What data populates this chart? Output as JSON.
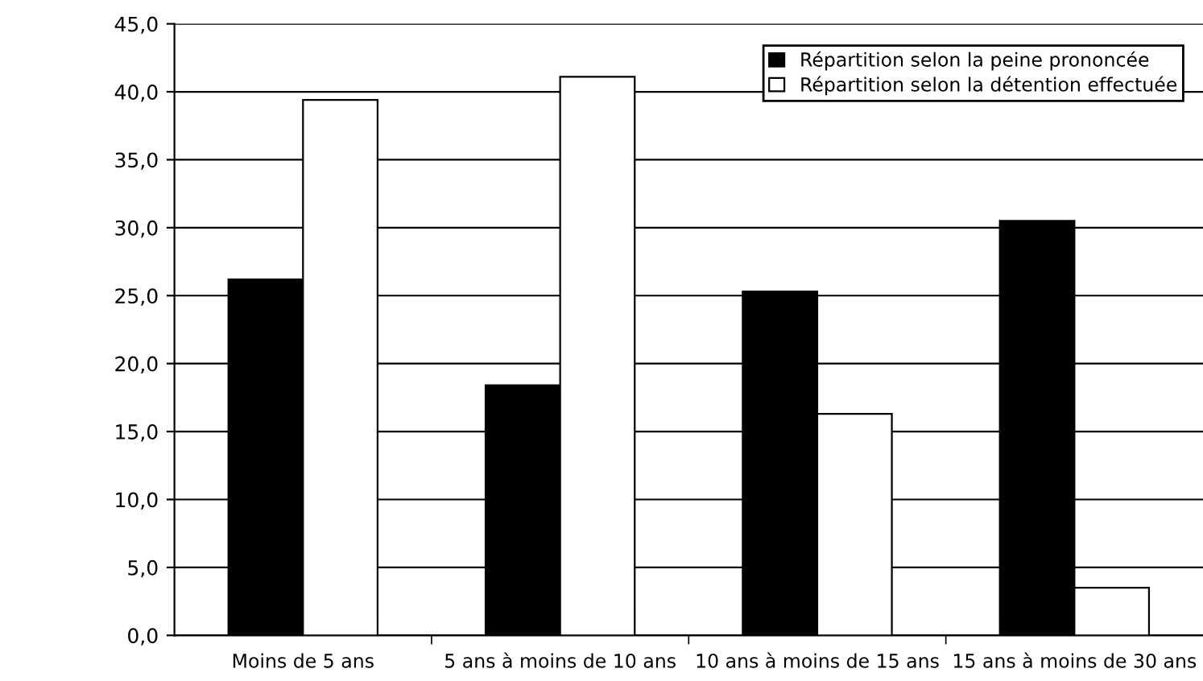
{
  "chart_data": {
    "type": "bar",
    "categories": [
      "Moins de 5 ans",
      "5 ans à moins de 10 ans",
      "10 ans à moins de 15 ans",
      "15 ans à moins de 30 ans"
    ],
    "series": [
      {
        "name": "Répartition selon la peine prononcée",
        "color": "#000000",
        "values": [
          26.2,
          18.4,
          25.3,
          30.5
        ]
      },
      {
        "name": "Répartition selon la détention effectuée",
        "color": "#ffffff",
        "values": [
          39.4,
          41.1,
          16.3,
          3.5
        ]
      }
    ],
    "ylim": [
      0,
      45
    ],
    "yticks": [
      {
        "value": 0,
        "label": "0,0"
      },
      {
        "value": 5,
        "label": "5,0"
      },
      {
        "value": 10,
        "label": "10,0"
      },
      {
        "value": 15,
        "label": "15,0"
      },
      {
        "value": 20,
        "label": "20,0"
      },
      {
        "value": 25,
        "label": "25,0"
      },
      {
        "value": 30,
        "label": "30,0"
      },
      {
        "value": 35,
        "label": "35,0"
      },
      {
        "value": 40,
        "label": "40,0"
      },
      {
        "value": 45,
        "label": "45,0"
      }
    ],
    "grid": "y",
    "legend": "top right"
  }
}
